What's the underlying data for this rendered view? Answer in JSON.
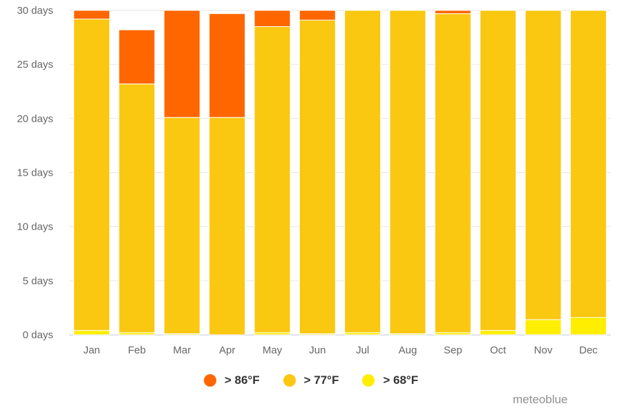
{
  "chart_data": {
    "type": "bar",
    "stacked": true,
    "categories": [
      "Jan",
      "Feb",
      "Mar",
      "Apr",
      "May",
      "Jun",
      "Jul",
      "Aug",
      "Sep",
      "Oct",
      "Nov",
      "Dec"
    ],
    "series": [
      {
        "name": "> 68°F",
        "color": "#ffee00",
        "values": [
          0.4,
          0.2,
          0.1,
          0.0,
          0.2,
          0.1,
          0.2,
          0.1,
          0.2,
          0.4,
          1.4,
          1.6
        ]
      },
      {
        "name": "> 77°F",
        "color": "#fac711",
        "values": [
          28.8,
          23.0,
          20.0,
          20.1,
          28.3,
          29.0,
          29.8,
          29.9,
          29.5,
          29.6,
          28.6,
          28.4
        ]
      },
      {
        "name": "> 86°F",
        "color": "#ff6600",
        "values": [
          0.8,
          5.0,
          9.9,
          9.6,
          1.5,
          0.9,
          0.0,
          0.0,
          0.3,
          0.0,
          0.0,
          0.0
        ]
      }
    ],
    "ylim": [
      0,
      30
    ],
    "yticks": [
      {
        "value": 0,
        "label": "0 days"
      },
      {
        "value": 5,
        "label": "5 days"
      },
      {
        "value": 10,
        "label": "10 days"
      },
      {
        "value": 15,
        "label": "15 days"
      },
      {
        "value": 20,
        "label": "20 days"
      },
      {
        "value": 25,
        "label": "25 days"
      },
      {
        "value": 30,
        "label": "30 days"
      }
    ],
    "grid": true,
    "legend_position": "bottom"
  },
  "legend": [
    {
      "label": "> 86°F",
      "color": "#ff6600"
    },
    {
      "label": "> 77°F",
      "color": "#fac711"
    },
    {
      "label": "> 68°F",
      "color": "#ffee00"
    }
  ],
  "credit": "meteoblue"
}
